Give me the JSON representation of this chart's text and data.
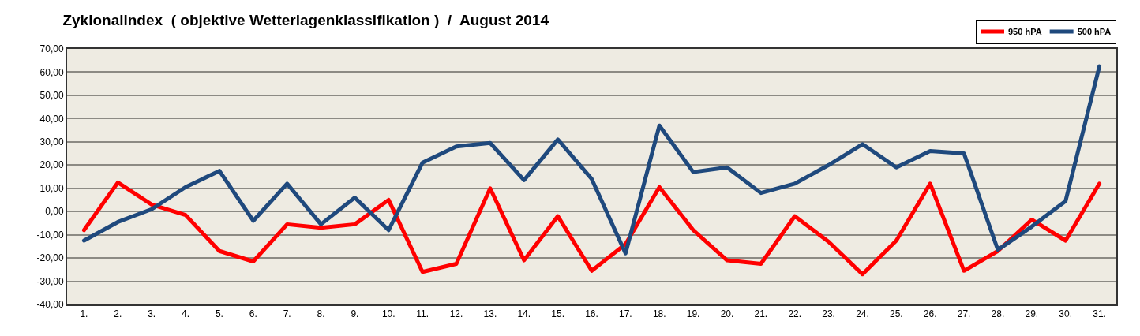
{
  "chart_data": {
    "type": "line",
    "title": "Zyklonalindex  ( objektive Wetterlagenklassifikation )  /  August 2014",
    "categories": [
      "1.",
      "2.",
      "3.",
      "4.",
      "5.",
      "6.",
      "7.",
      "8.",
      "9.",
      "10.",
      "11.",
      "12.",
      "13.",
      "14.",
      "15.",
      "16.",
      "17.",
      "18.",
      "19.",
      "20.",
      "21.",
      "22.",
      "23.",
      "24.",
      "25.",
      "26.",
      "27.",
      "28.",
      "29.",
      "30.",
      "31."
    ],
    "series": [
      {
        "name": "950 hPA",
        "color": "#ff0000",
        "values": [
          -8,
          12.5,
          3,
          -1.5,
          -17,
          -21.5,
          -5.5,
          -7,
          -5.5,
          5,
          -26,
          -22.5,
          10,
          -21,
          -2,
          -25.5,
          -14,
          10.5,
          -8,
          -21,
          -22.5,
          -2,
          -13,
          -27,
          -12.5,
          12,
          -25.5,
          -17,
          -3.5,
          -12.5,
          12
        ]
      },
      {
        "name": "500 hPA",
        "color": "#1f497d",
        "values": [
          -12.5,
          -4.5,
          1,
          10.5,
          17.5,
          -4,
          12,
          -5.5,
          6,
          -8,
          21,
          28,
          29.5,
          13.5,
          31,
          14,
          -18,
          37,
          17,
          19,
          8,
          12,
          20,
          29,
          19,
          26,
          25,
          -16.5,
          -6.5,
          4.5,
          62.5
        ]
      }
    ],
    "ylim": [
      -40,
      70
    ],
    "yticks": [
      {
        "value": -40,
        "label": "-40,00"
      },
      {
        "value": -30,
        "label": "-30,00"
      },
      {
        "value": -20,
        "label": "-20,00"
      },
      {
        "value": -10,
        "label": "-10,00"
      },
      {
        "value": 0,
        "label": "0,00"
      },
      {
        "value": 10,
        "label": "10,00"
      },
      {
        "value": 20,
        "label": "20,00"
      },
      {
        "value": 30,
        "label": "30,00"
      },
      {
        "value": 40,
        "label": "40,00"
      },
      {
        "value": 50,
        "label": "50,00"
      },
      {
        "value": 60,
        "label": "60,00"
      },
      {
        "value": 70,
        "label": "70,00"
      }
    ],
    "grid": "y",
    "legend": "top right",
    "marker": "none",
    "line_style": "solid"
  }
}
